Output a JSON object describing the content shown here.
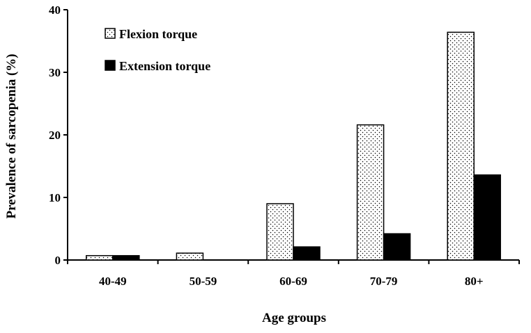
{
  "chart_data": {
    "type": "bar",
    "categories": [
      "40-49",
      "50-59",
      "60-69",
      "70-79",
      "80+"
    ],
    "series": [
      {
        "name": "Flexion torque",
        "values": [
          0.7,
          1.1,
          9.0,
          21.6,
          36.4
        ],
        "fill": "dotted-white",
        "color": "#ffffff"
      },
      {
        "name": "Extension torque",
        "values": [
          0.7,
          0,
          2.1,
          4.2,
          13.6
        ],
        "fill": "solid",
        "color": "#000000"
      }
    ],
    "title": "",
    "xlabel": "Age groups",
    "ylabel": "Prevalence of sarcopenia (%)",
    "ylim": [
      0,
      40
    ],
    "yticks": [
      "0",
      "10",
      "20",
      "30",
      "40"
    ],
    "grid": false,
    "legend_position": "top-left"
  }
}
